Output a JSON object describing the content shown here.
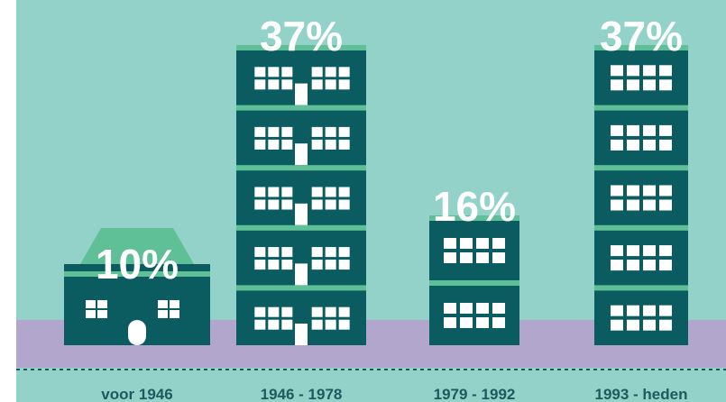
{
  "chart_data": {
    "type": "bar",
    "categories": [
      "voor 1946",
      "1946 - 1978",
      "1979 - 1992",
      "1993 - heden"
    ],
    "values": [
      10,
      37,
      16,
      37
    ],
    "value_labels": [
      "10%",
      "37%",
      "16%",
      "37%"
    ],
    "color": "#0b5c60"
  }
}
